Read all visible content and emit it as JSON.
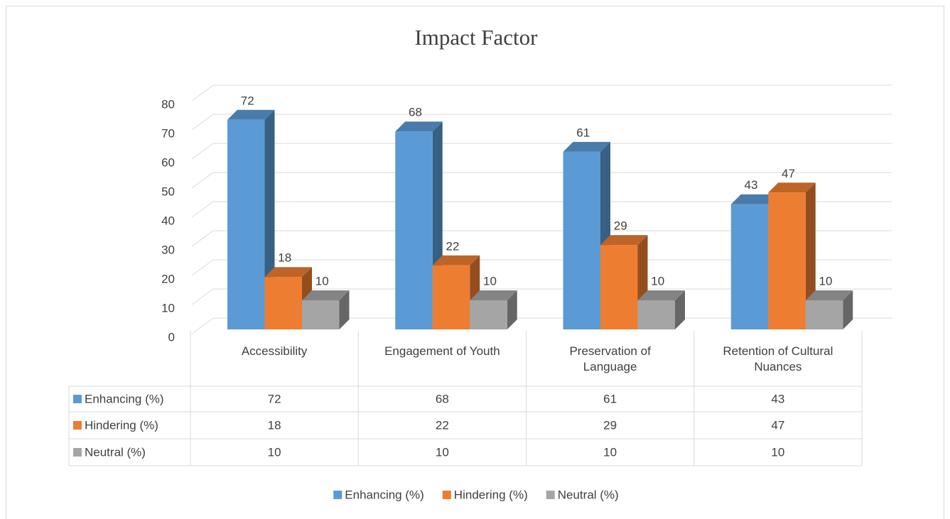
{
  "chart_data": {
    "type": "bar3d",
    "title": "Impact Factor",
    "categories": [
      "Accessibility",
      "Engagement of Youth",
      "Preservation of Language",
      "Retention of Cultural Nuances"
    ],
    "series": [
      {
        "name": "Enhancing (%)",
        "color": "#5b9bd5",
        "values": [
          72,
          68,
          61,
          43
        ]
      },
      {
        "name": "Hindering (%)",
        "color": "#ed7d31",
        "values": [
          18,
          22,
          29,
          47
        ]
      },
      {
        "name": "Neutral (%)",
        "color": "#a5a5a5",
        "values": [
          10,
          10,
          10,
          10
        ]
      }
    ],
    "ylim": [
      0,
      80
    ],
    "yticks": [
      0,
      10,
      20,
      30,
      40,
      50,
      60,
      70,
      80
    ],
    "grid": true,
    "data_table": true,
    "legend": "bottom"
  }
}
